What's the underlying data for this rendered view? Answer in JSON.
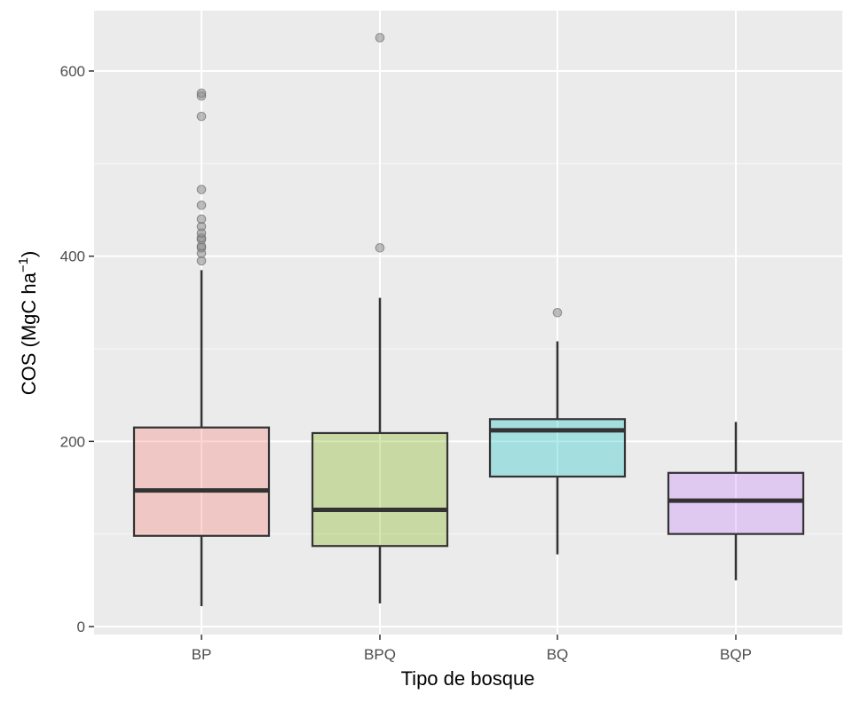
{
  "chart_data": {
    "type": "boxplot",
    "xlabel": "Tipo de bosque",
    "ylabel": {
      "prefix": "COS (MgC ha",
      "superscript": "−1",
      "suffix": ")"
    },
    "categories": [
      "BP",
      "BPQ",
      "BQ",
      "BQP"
    ],
    "ylim": [
      -10,
      665
    ],
    "yticks": [
      0,
      200,
      400,
      600
    ],
    "ytick_labels": [
      "0",
      "200",
      "400",
      "600"
    ],
    "grid": true,
    "legend": "none",
    "boxes": [
      {
        "category": "BP",
        "whisker_low": 22,
        "q1": 98,
        "median": 147,
        "q3": 215,
        "whisker_high": 385,
        "fill": "#f8766d",
        "outliers": [
          395,
          403,
          409,
          411,
          418,
          420,
          425,
          432,
          440,
          455,
          472,
          551,
          573,
          576
        ]
      },
      {
        "category": "BPQ",
        "whisker_low": 25,
        "q1": 87,
        "median": 126,
        "q3": 209,
        "whisker_high": 355,
        "fill": "#7cae00",
        "outliers": [
          409,
          636
        ]
      },
      {
        "category": "BQ",
        "whisker_low": 78,
        "q1": 162,
        "median": 212,
        "q3": 224,
        "whisker_high": 308,
        "fill": "#00bfc4",
        "outliers": [
          339
        ]
      },
      {
        "category": "BQP",
        "whisker_low": 50,
        "q1": 100,
        "median": 136,
        "q3": 166,
        "whisker_high": 221,
        "fill": "#c77cff",
        "outliers": []
      }
    ],
    "colors": {
      "panel_background": "#ebebeb",
      "grid_major": "#ffffff",
      "box_outline": "#333333",
      "outlier_fill": "#8c8c8c",
      "tick_text": "#4d4d4d"
    }
  }
}
